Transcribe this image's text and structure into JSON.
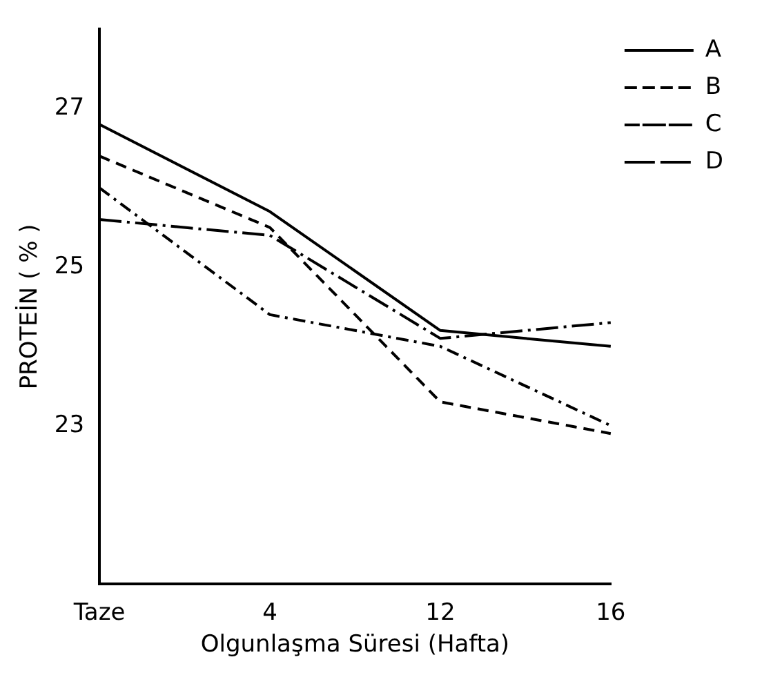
{
  "chart_data": {
    "type": "line",
    "xlabel": "Olgunlaşma Süresi (Hafta)",
    "ylabel": "PROTEİN ( % )",
    "categories": [
      "Taze",
      "4",
      "12",
      "16"
    ],
    "series": [
      {
        "name": "A",
        "color": "#000000",
        "line_style": "solid",
        "values": [
          26.8,
          25.7,
          24.2,
          24.0
        ]
      },
      {
        "name": "B",
        "color": "#000000",
        "line_style": "dashed",
        "values": [
          26.4,
          25.5,
          23.3,
          22.9
        ]
      },
      {
        "name": "C",
        "color": "#000000",
        "line_style": "dash-dot",
        "values": [
          26.0,
          24.4,
          24.0,
          23.0
        ]
      },
      {
        "name": "D",
        "color": "#000000",
        "line_style": "long-dash-dot",
        "values": [
          25.6,
          25.4,
          24.1,
          24.3
        ]
      }
    ],
    "ylim": [
      21,
      28
    ],
    "yticks": [
      23,
      25,
      27
    ],
    "grid": false,
    "legend": "right",
    "marker": "none"
  }
}
